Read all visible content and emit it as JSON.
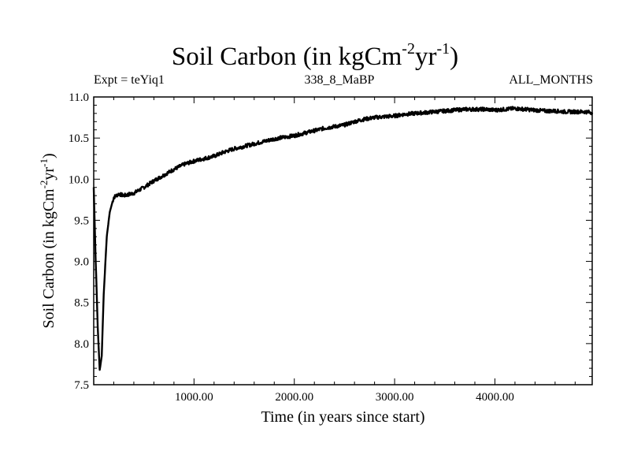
{
  "chart_data": {
    "type": "line",
    "title": {
      "main": "Soil Carbon (in kgCm",
      "exp1": "-2",
      "mid": "yr",
      "exp2": "-1",
      "close": ")"
    },
    "subtitle_left": "Expt = teYiq1",
    "subtitle_center": "338_8_MaBP",
    "subtitle_right": "ALL_MONTHS",
    "xlabel": "Time (in years since start)",
    "ylabel": {
      "main": "Soil Carbon (in kgCm",
      "exp1": "-2",
      "mid": "yr",
      "exp2": "-1",
      "close": ")"
    },
    "xlim": [
      0,
      4970
    ],
    "ylim": [
      7.5,
      11.0
    ],
    "x_ticks": [
      1000,
      2000,
      3000,
      4000
    ],
    "x_tick_labels": [
      "1000.00",
      "2000.00",
      "3000.00",
      "4000.00"
    ],
    "y_ticks": [
      7.5,
      8.0,
      8.5,
      9.0,
      9.5,
      10.0,
      10.5,
      11.0
    ],
    "y_tick_labels": [
      "7.5",
      "8.0",
      "8.5",
      "9.0",
      "9.5",
      "10.0",
      "10.5",
      "11.0"
    ],
    "grid": false,
    "series": [
      {
        "name": "Soil Carbon",
        "x": [
          0,
          20,
          40,
          60,
          80,
          100,
          130,
          160,
          200,
          250,
          300,
          400,
          500,
          600,
          700,
          800,
          900,
          1000,
          1100,
          1200,
          1300,
          1400,
          1500,
          1600,
          1700,
          1800,
          1900,
          2000,
          2100,
          2200,
          2300,
          2400,
          2500,
          2600,
          2700,
          2800,
          2900,
          3000,
          3100,
          3200,
          3300,
          3400,
          3500,
          3600,
          3700,
          3800,
          3900,
          4000,
          4100,
          4200,
          4300,
          4400,
          4500,
          4600,
          4700,
          4800,
          4900,
          4970
        ],
        "values": [
          9.9,
          9.0,
          8.2,
          7.68,
          7.85,
          8.6,
          9.3,
          9.6,
          9.78,
          9.82,
          9.8,
          9.83,
          9.9,
          9.98,
          10.05,
          10.12,
          10.18,
          10.22,
          10.25,
          10.28,
          10.33,
          10.37,
          10.4,
          10.43,
          10.46,
          10.49,
          10.51,
          10.53,
          10.56,
          10.59,
          10.62,
          10.64,
          10.66,
          10.7,
          10.73,
          10.75,
          10.76,
          10.77,
          10.79,
          10.8,
          10.81,
          10.82,
          10.83,
          10.84,
          10.85,
          10.85,
          10.85,
          10.84,
          10.85,
          10.86,
          10.85,
          10.84,
          10.83,
          10.83,
          10.82,
          10.82,
          10.82,
          10.81
        ]
      }
    ]
  }
}
